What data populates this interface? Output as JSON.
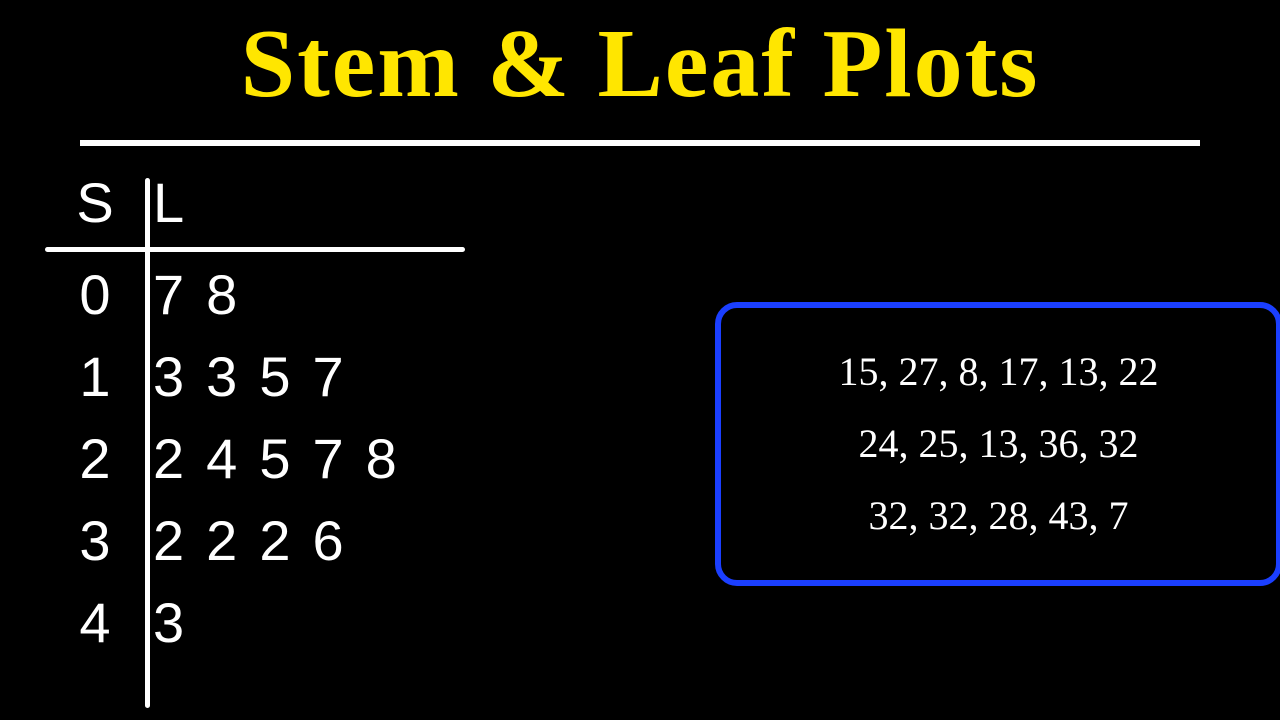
{
  "title": {
    "text": "Stem & Leaf Plots",
    "color": "#ffe600",
    "underline_color": "#ffffff",
    "fontsize": 98,
    "font_family": "Georgia"
  },
  "background_color": "#000000",
  "plot": {
    "type": "stem-and-leaf",
    "stem_header": "S",
    "leaf_header": "L",
    "text_color": "#ffffff",
    "line_color": "#ffffff",
    "fontsize": 56,
    "font_family": "handwritten",
    "rows": [
      {
        "stem": "0",
        "leaves": [
          "7",
          "8"
        ]
      },
      {
        "stem": "1",
        "leaves": [
          "3",
          "3",
          "5",
          "7"
        ]
      },
      {
        "stem": "2",
        "leaves": [
          "2",
          "4",
          "5",
          "7",
          "8"
        ]
      },
      {
        "stem": "3",
        "leaves": [
          "2",
          "2",
          "2",
          "6"
        ]
      },
      {
        "stem": "4",
        "leaves": [
          "3"
        ]
      }
    ]
  },
  "data_box": {
    "border_color": "#1b3fff",
    "border_width": 6,
    "border_radius": 22,
    "text_color": "#ffffff",
    "fontsize": 40,
    "font_family": "Georgia",
    "lines": [
      "15, 27, 8, 17, 13, 22",
      "24, 25, 13, 36, 32",
      "32, 32, 28, 43, 7"
    ]
  }
}
